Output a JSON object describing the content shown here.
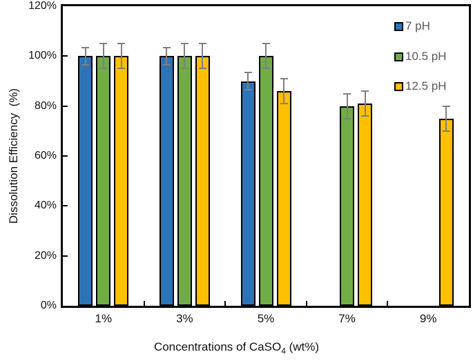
{
  "chart_data": {
    "type": "bar",
    "title": "",
    "categories": [
      "1%",
      "3%",
      "5%",
      "7%",
      "9%"
    ],
    "series": [
      {
        "name": "7 pH",
        "color": "#2E74B5",
        "values": [
          100,
          100,
          90,
          null,
          null
        ],
        "errors": [
          3.5,
          3.5,
          3.5,
          null,
          null
        ]
      },
      {
        "name": "10.5 pH",
        "color": "#70AD47",
        "values": [
          100,
          100,
          100,
          80,
          null
        ],
        "errors": [
          5,
          5,
          5,
          5,
          null
        ]
      },
      {
        "name": "12.5 pH",
        "color": "#FFC000",
        "values": [
          100,
          100,
          86,
          81,
          75
        ],
        "errors": [
          5,
          5,
          5,
          5,
          5
        ]
      }
    ],
    "xlabel": "Concentrations of CaSO4 (wt%)",
    "xlabel_parts": {
      "main": "Concentrations of CaSO",
      "sub": "4",
      "suffix": " (wt%)"
    },
    "ylabel": "Dissolution Efficiency  (%)",
    "ylim": [
      0,
      120
    ],
    "yticks": [
      {
        "value": 0,
        "label": "0%"
      },
      {
        "value": 20,
        "label": "20%"
      },
      {
        "value": 40,
        "label": "40%"
      },
      {
        "value": 60,
        "label": "60%"
      },
      {
        "value": 80,
        "label": "80%"
      },
      {
        "value": 100,
        "label": "100%"
      },
      {
        "value": 120,
        "label": "120%"
      }
    ],
    "grid": false,
    "legend_position": "top-right",
    "error_bar_color": "#808080",
    "bar_border_color": "#000000",
    "axis_color": "#000000"
  }
}
